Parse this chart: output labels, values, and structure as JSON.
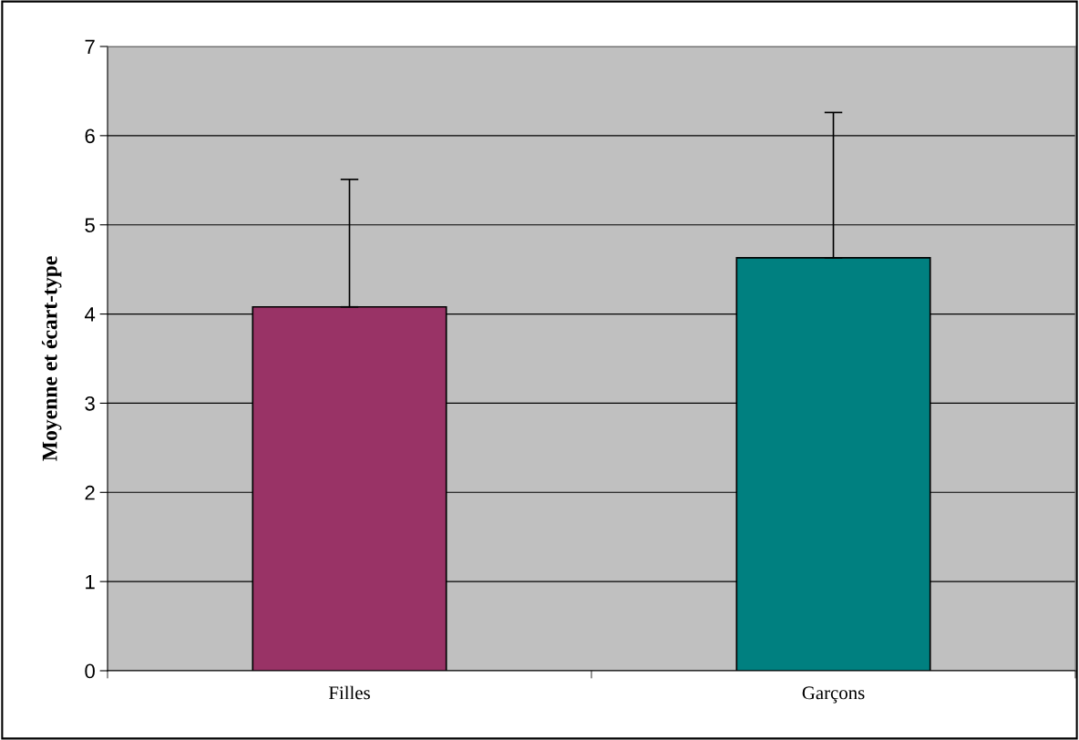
{
  "chart_data": {
    "type": "bar",
    "ylabel": "Moyenne et écart-type",
    "categories": [
      "Filles",
      "Garçons"
    ],
    "values": [
      4.08,
      4.63
    ],
    "colors": [
      "#993366",
      "#008080"
    ],
    "errors": [
      [
        4.08,
        5.51
      ],
      [
        4.63,
        6.26
      ]
    ],
    "ylim": [
      0,
      7
    ],
    "yticks": [
      0,
      1,
      2,
      3,
      4,
      5,
      6,
      7
    ],
    "grid": "y"
  }
}
